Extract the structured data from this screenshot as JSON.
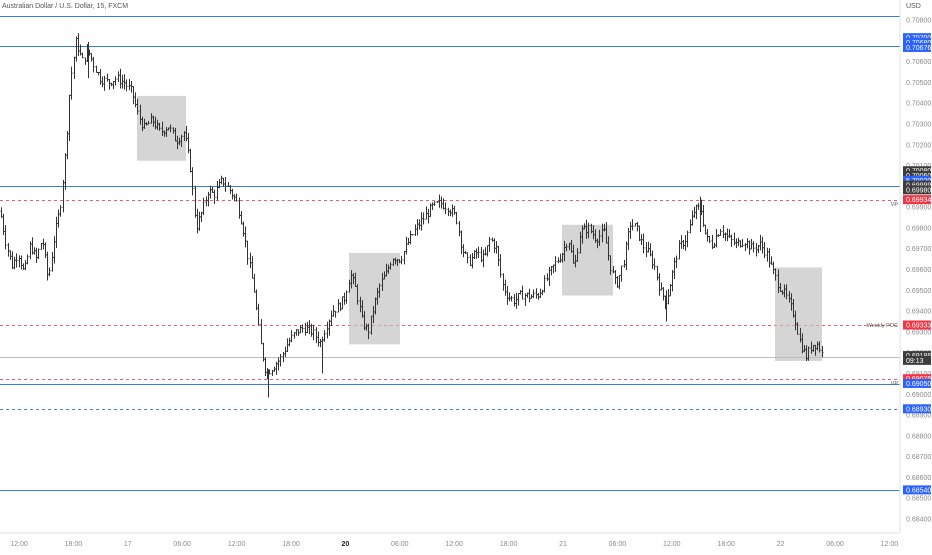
{
  "header": {
    "symbol_title": "Australian Dollar / U.S. Dollar, 15, FXCM",
    "currency": "USD"
  },
  "colors": {
    "candle": "#333333",
    "blue_line": "#3d7fd8",
    "red_dashed": "#e8606a",
    "blue_dashed": "#4a7fd6",
    "zone_fill": "#bfbfbf",
    "label_blue": "#2962ff",
    "label_red": "#f23645",
    "label_dark": "#3c3c3c",
    "grid_text": "#8a8a8a"
  },
  "chart_data": {
    "type": "candlestick",
    "ylim": [
      0.6837,
      0.7088
    ],
    "y_ticks": [
      "0.70800",
      "0.70700",
      "0.70600",
      "0.70500",
      "0.70400",
      "0.70300",
      "0.70200",
      "0.70100",
      "0.70000",
      "0.69900",
      "0.69800",
      "0.69700",
      "0.69600",
      "0.69500",
      "0.69400",
      "0.69300",
      "0.69200",
      "0.69100",
      "0.69000",
      "0.68900",
      "0.68800",
      "0.68700",
      "0.68600",
      "0.68500",
      "0.68400"
    ],
    "x_ticks": [
      {
        "label": "12:00",
        "bold": false
      },
      {
        "label": "18:00",
        "bold": false
      },
      {
        "label": "17",
        "bold": false
      },
      {
        "label": "06:00",
        "bold": false
      },
      {
        "label": "12:00",
        "bold": false
      },
      {
        "label": "18:00",
        "bold": false
      },
      {
        "label": "20",
        "bold": true
      },
      {
        "label": "06:00",
        "bold": false
      },
      {
        "label": "12:00",
        "bold": false
      },
      {
        "label": "18:00",
        "bold": false
      },
      {
        "label": "21",
        "bold": false
      },
      {
        "label": "06:00",
        "bold": false
      },
      {
        "label": "12:00",
        "bold": false
      },
      {
        "label": "18:00",
        "bold": false
      },
      {
        "label": "22",
        "bold": false
      },
      {
        "label": "06:00",
        "bold": false
      },
      {
        "label": "12:00",
        "bold": false
      }
    ],
    "price_path": [
      [
        0,
        0.6988
      ],
      [
        6,
        0.6972
      ],
      [
        12,
        0.6962
      ],
      [
        18,
        0.6968
      ],
      [
        24,
        0.6958
      ],
      [
        30,
        0.6972
      ],
      [
        36,
        0.6965
      ],
      [
        42,
        0.6975
      ],
      [
        48,
        0.6955
      ],
      [
        54,
        0.6975
      ],
      [
        60,
        0.699
      ],
      [
        66,
        0.702
      ],
      [
        70,
        0.705
      ],
      [
        76,
        0.707
      ],
      [
        82,
        0.706
      ],
      [
        88,
        0.7065
      ],
      [
        94,
        0.7058
      ],
      [
        100,
        0.7052
      ],
      [
        108,
        0.705
      ],
      [
        116,
        0.7052
      ],
      [
        124,
        0.705
      ],
      [
        132,
        0.7045
      ],
      [
        138,
        0.7034
      ],
      [
        144,
        0.7028
      ],
      [
        152,
        0.7032
      ],
      [
        160,
        0.7026
      ],
      [
        168,
        0.7029
      ],
      [
        176,
        0.7022
      ],
      [
        184,
        0.7026
      ],
      [
        190,
        0.701
      ],
      [
        196,
        0.698
      ],
      [
        202,
        0.6988
      ],
      [
        208,
        0.6998
      ],
      [
        214,
        0.6996
      ],
      [
        222,
        0.7003
      ],
      [
        230,
        0.6998
      ],
      [
        236,
        0.6993
      ],
      [
        242,
        0.6982
      ],
      [
        248,
        0.6965
      ],
      [
        254,
        0.695
      ],
      [
        260,
        0.6925
      ],
      [
        266,
        0.691
      ],
      [
        272,
        0.6913
      ],
      [
        280,
        0.6917
      ],
      [
        288,
        0.6925
      ],
      [
        296,
        0.693
      ],
      [
        304,
        0.6932
      ],
      [
        312,
        0.693
      ],
      [
        320,
        0.6925
      ],
      [
        326,
        0.6933
      ],
      [
        332,
        0.694
      ],
      [
        338,
        0.6942
      ],
      [
        344,
        0.6946
      ],
      [
        350,
        0.6958
      ],
      [
        356,
        0.695
      ],
      [
        362,
        0.6935
      ],
      [
        368,
        0.693
      ],
      [
        374,
        0.6943
      ],
      [
        380,
        0.6953
      ],
      [
        386,
        0.6958
      ],
      [
        392,
        0.6966
      ],
      [
        400,
        0.6965
      ],
      [
        408,
        0.6973
      ],
      [
        416,
        0.698
      ],
      [
        424,
        0.6985
      ],
      [
        432,
        0.699
      ],
      [
        440,
        0.6992
      ],
      [
        448,
        0.699
      ],
      [
        456,
        0.6985
      ],
      [
        462,
        0.697
      ],
      [
        468,
        0.6963
      ],
      [
        476,
        0.6968
      ],
      [
        484,
        0.6965
      ],
      [
        490,
        0.6975
      ],
      [
        496,
        0.697
      ],
      [
        502,
        0.6953
      ],
      [
        508,
        0.6947
      ],
      [
        514,
        0.6945
      ],
      [
        522,
        0.6948
      ],
      [
        530,
        0.6947
      ],
      [
        538,
        0.6948
      ],
      [
        546,
        0.6955
      ],
      [
        554,
        0.6962
      ],
      [
        562,
        0.6968
      ],
      [
        568,
        0.6975
      ],
      [
        574,
        0.696
      ],
      [
        580,
        0.6978
      ],
      [
        588,
        0.698
      ],
      [
        596,
        0.6975
      ],
      [
        604,
        0.6978
      ],
      [
        610,
        0.6962
      ],
      [
        616,
        0.6952
      ],
      [
        624,
        0.6965
      ],
      [
        630,
        0.6982
      ],
      [
        636,
        0.698
      ],
      [
        642,
        0.6972
      ],
      [
        648,
        0.6968
      ],
      [
        654,
        0.6962
      ],
      [
        660,
        0.695
      ],
      [
        666,
        0.6945
      ],
      [
        672,
        0.6958
      ],
      [
        678,
        0.697
      ],
      [
        686,
        0.6975
      ],
      [
        694,
        0.6988
      ],
      [
        700,
        0.699
      ],
      [
        706,
        0.6975
      ],
      [
        712,
        0.6972
      ],
      [
        720,
        0.698
      ],
      [
        728,
        0.6975
      ],
      [
        736,
        0.6972
      ],
      [
        744,
        0.6974
      ],
      [
        752,
        0.697
      ],
      [
        760,
        0.6972
      ],
      [
        766,
        0.6968
      ],
      [
        772,
        0.696
      ],
      [
        778,
        0.6953
      ],
      [
        786,
        0.6947
      ],
      [
        794,
        0.6938
      ],
      [
        800,
        0.6925
      ],
      [
        806,
        0.6918
      ],
      [
        812,
        0.6924
      ],
      [
        818,
        0.6924
      ],
      [
        822,
        0.6919
      ]
    ],
    "zones": [
      {
        "x0": 137,
        "x1": 186,
        "y_top": 0.70435,
        "y_bottom": 0.70123
      },
      {
        "x0": 349,
        "x1": 400,
        "y_top": 0.6968,
        "y_bottom": 0.6924
      },
      {
        "x0": 562,
        "x1": 613,
        "y_top": 0.69815,
        "y_bottom": 0.69475
      },
      {
        "x0": 775,
        "x1": 822,
        "y_top": 0.6961,
        "y_bottom": 0.6916
      }
    ],
    "levels": [
      {
        "price": 0.70821,
        "style": "solid",
        "color": "#3d7fd8"
      },
      {
        "price": 0.70676,
        "style": "solid",
        "color": "#3d7fd8"
      },
      {
        "price": 0.70002,
        "style": "solid",
        "color": "#3d7fd8"
      },
      {
        "price": 0.69934,
        "style": "dashed",
        "color": "#e8606a",
        "note": "VP"
      },
      {
        "price": 0.69333,
        "style": "dashed",
        "color": "#e8606a",
        "note": "Weekly POC"
      },
      {
        "price": 0.6918,
        "style": "thin",
        "color": "#bdbdbd"
      },
      {
        "price": 0.69075,
        "style": "dashed",
        "color": "#e8606a",
        "note": "VP"
      },
      {
        "price": 0.6905,
        "style": "solid",
        "color": "#3d7fd8"
      },
      {
        "price": 0.6893,
        "style": "dashed",
        "color": "#4a7fd6"
      },
      {
        "price": 0.6854,
        "style": "solid",
        "color": "#3d7fd8"
      }
    ],
    "price_labels": [
      {
        "text": "0.70700",
        "price": 0.70715,
        "kind": "blue"
      },
      {
        "text": "0.70680",
        "price": 0.70692,
        "kind": "blue"
      },
      {
        "text": "0.70676",
        "price": 0.70668,
        "kind": "blue"
      },
      {
        "text": "0.70080",
        "price": 0.70075,
        "kind": "dark"
      },
      {
        "text": "0.70060",
        "price": 0.70052,
        "kind": "dark"
      },
      {
        "text": "5.70020",
        "price": 0.70029,
        "kind": "blue"
      },
      {
        "text": "0.69999",
        "price": 0.70006,
        "kind": "dark"
      },
      {
        "text": "0.69980",
        "price": 0.69983,
        "kind": "dark"
      },
      {
        "text": "0.69934",
        "price": 0.69936,
        "kind": "red"
      },
      {
        "text": "0.69333",
        "price": 0.69333,
        "kind": "red"
      },
      {
        "text": "0.69186",
        "price": 0.69186,
        "kind": "dark"
      },
      {
        "text": "09:13",
        "price": 0.69163,
        "kind": "dark"
      },
      {
        "text": "0.69075",
        "price": 0.69075,
        "kind": "red"
      },
      {
        "text": "0.69050",
        "price": 0.69052,
        "kind": "blue"
      },
      {
        "text": "0.68930",
        "price": 0.6893,
        "kind": "blue"
      },
      {
        "text": "0.68540",
        "price": 0.6854,
        "kind": "blue"
      }
    ],
    "level_notes": [
      {
        "text": "VP",
        "price": 0.69915
      },
      {
        "text": "Weekly POC",
        "price": 0.69333
      },
      {
        "text": "VP",
        "price": 0.69055
      }
    ]
  }
}
